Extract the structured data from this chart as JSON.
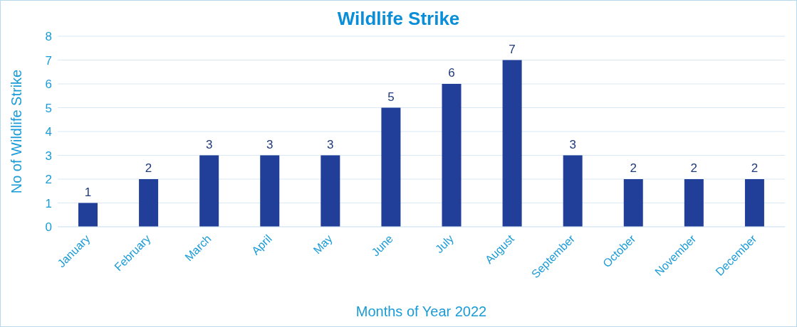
{
  "chart_data": {
    "type": "bar",
    "title": "Wildlife Strike",
    "xlabel": "Months of Year 2022",
    "ylabel": "No of Wildlife Strike",
    "categories": [
      "January",
      "February",
      "March",
      "April",
      "May",
      "June",
      "July",
      "August",
      "September",
      "October",
      "November",
      "December"
    ],
    "values": [
      1,
      2,
      3,
      3,
      3,
      5,
      6,
      7,
      3,
      2,
      2,
      2
    ],
    "color": "#213f99",
    "ylim": [
      0,
      8
    ],
    "yticks": [
      0,
      1,
      2,
      3,
      4,
      5,
      6,
      7,
      8
    ],
    "grid": "y",
    "data_labels": true
  }
}
